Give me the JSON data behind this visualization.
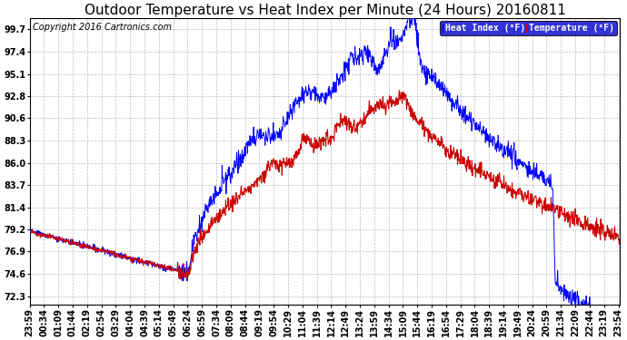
{
  "title": "Outdoor Temperature vs Heat Index per Minute (24 Hours) 20160811",
  "copyright": "Copyright 2016 Cartronics.com",
  "legend_heat_index": "Heat Index (°F)",
  "legend_temperature": "Temperature (°F)",
  "heat_index_color": "#0000ff",
  "temperature_color": "#cc0000",
  "heat_index_legend_bg": "#0000cc",
  "temperature_legend_bg": "#cc0000",
  "background_color": "#ffffff",
  "plot_bg_color": "#ffffff",
  "grid_color": "#bbbbbb",
  "yticks": [
    72.3,
    74.6,
    76.9,
    79.2,
    81.4,
    83.7,
    86.0,
    88.3,
    90.6,
    92.8,
    95.1,
    97.4,
    99.7
  ],
  "ylim": [
    71.5,
    100.8
  ],
  "title_fontsize": 11,
  "copyright_fontsize": 7,
  "axis_fontsize": 7,
  "tick_interval_minutes": 35
}
